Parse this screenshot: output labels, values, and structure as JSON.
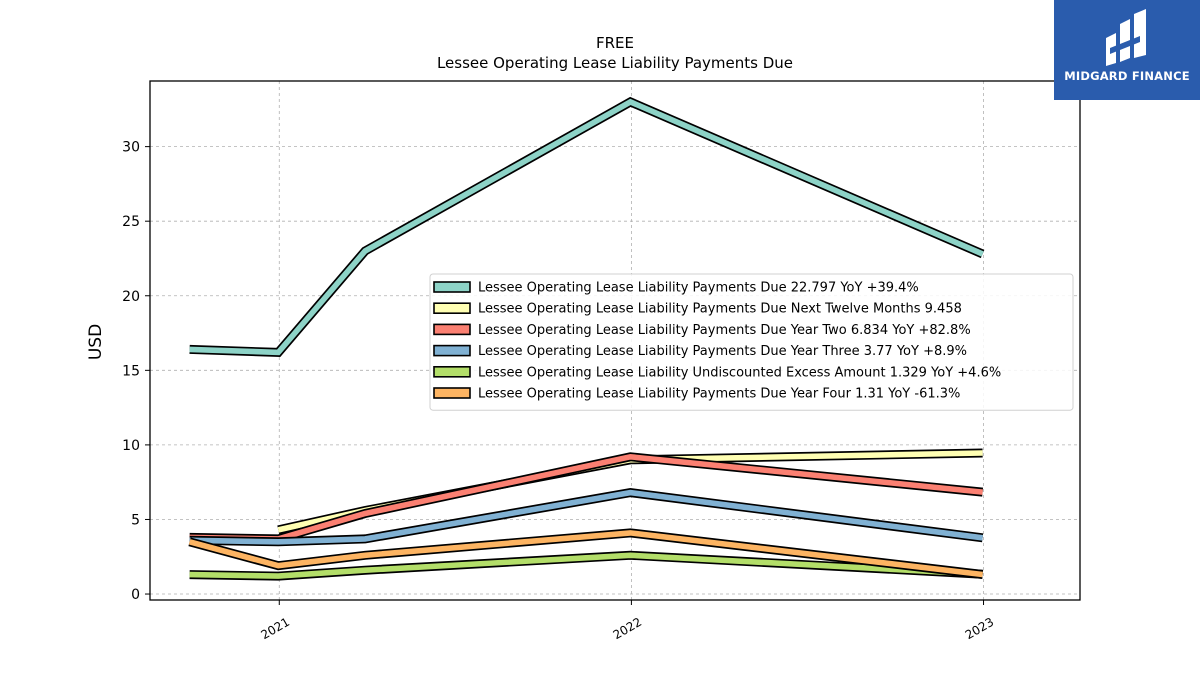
{
  "logo": {
    "text": "MIDGARD FINANCE"
  },
  "colors": {
    "background": "#ffffff",
    "brand": "#2a5cad",
    "grid": "#b0b0b0",
    "series": [
      "#8dd3c7",
      "#ffffb3",
      "#fb8072",
      "#80b1d3",
      "#b3de69",
      "#fdb462"
    ]
  },
  "chart_data": {
    "type": "line",
    "title": "FREE",
    "subtitle": "Lessee Operating Lease Liability Payments Due",
    "xlabel": "",
    "ylabel": "USD",
    "xlim": [
      "2020-08-20",
      "2023-04-11"
    ],
    "ylim": [
      -0.4,
      34.4
    ],
    "x_ticks": [
      {
        "date": "2021-01-01",
        "label": "2021"
      },
      {
        "date": "2022-01-01",
        "label": "2022"
      },
      {
        "date": "2023-01-01",
        "label": "2023"
      }
    ],
    "y_ticks": [
      0,
      5,
      10,
      15,
      20,
      25,
      30
    ],
    "grid": true,
    "legend_position": "center-right",
    "series": [
      {
        "name": "Lessee Operating Lease Liability Payments Due",
        "legend": "Lessee Operating Lease Liability Payments Due  22.797 YoY +39.4%",
        "points": [
          [
            "2020-09-30",
            16.4
          ],
          [
            "2020-12-31",
            16.2
          ],
          [
            "2021-03-31",
            23.0
          ],
          [
            "2021-12-31",
            33.0
          ],
          [
            "2022-12-31",
            22.8
          ]
        ]
      },
      {
        "name": "Lessee Operating Lease Liability Payments Due Next Twelve Months",
        "legend": "Lessee Operating Lease Liability Payments Due Next Twelve Months  9.458",
        "points": [
          [
            "2020-12-31",
            4.3
          ],
          [
            "2021-03-31",
            5.6
          ],
          [
            "2021-12-31",
            9.0
          ],
          [
            "2022-12-31",
            9.458
          ]
        ]
      },
      {
        "name": "Lessee Operating Lease Liability Payments Due Year Two",
        "legend": "Lessee Operating Lease Liability Payments Due Year Two  6.834 YoY +82.8%",
        "points": [
          [
            "2020-09-30",
            3.8
          ],
          [
            "2020-12-31",
            3.7
          ],
          [
            "2021-03-31",
            5.4
          ],
          [
            "2021-12-31",
            9.2
          ],
          [
            "2022-12-31",
            6.834
          ]
        ]
      },
      {
        "name": "Lessee Operating Lease Liability Payments Due Year Three",
        "legend": "Lessee Operating Lease Liability Payments Due Year Three  3.77 YoY +8.9%",
        "points": [
          [
            "2020-09-30",
            3.6
          ],
          [
            "2020-12-31",
            3.5
          ],
          [
            "2021-03-31",
            3.7
          ],
          [
            "2021-12-31",
            6.8
          ],
          [
            "2022-12-31",
            3.77
          ]
        ]
      },
      {
        "name": "Lessee Operating Lease Liability Undiscounted Excess Amount",
        "legend": "Lessee Operating Lease Liability Undiscounted Excess Amount  1.329 YoY +4.6%",
        "points": [
          [
            "2020-09-30",
            1.3
          ],
          [
            "2020-12-31",
            1.2
          ],
          [
            "2021-03-31",
            1.6
          ],
          [
            "2021-12-31",
            2.6
          ],
          [
            "2022-12-31",
            1.329
          ]
        ]
      },
      {
        "name": "Lessee Operating Lease Liability Payments Due Year Four",
        "legend": "Lessee Operating Lease Liability Payments Due Year Four  1.31 YoY -61.3%",
        "points": [
          [
            "2020-09-30",
            3.5
          ],
          [
            "2020-12-31",
            1.9
          ],
          [
            "2021-03-31",
            2.6
          ],
          [
            "2021-12-31",
            4.1
          ],
          [
            "2022-12-31",
            1.31
          ]
        ]
      }
    ]
  }
}
